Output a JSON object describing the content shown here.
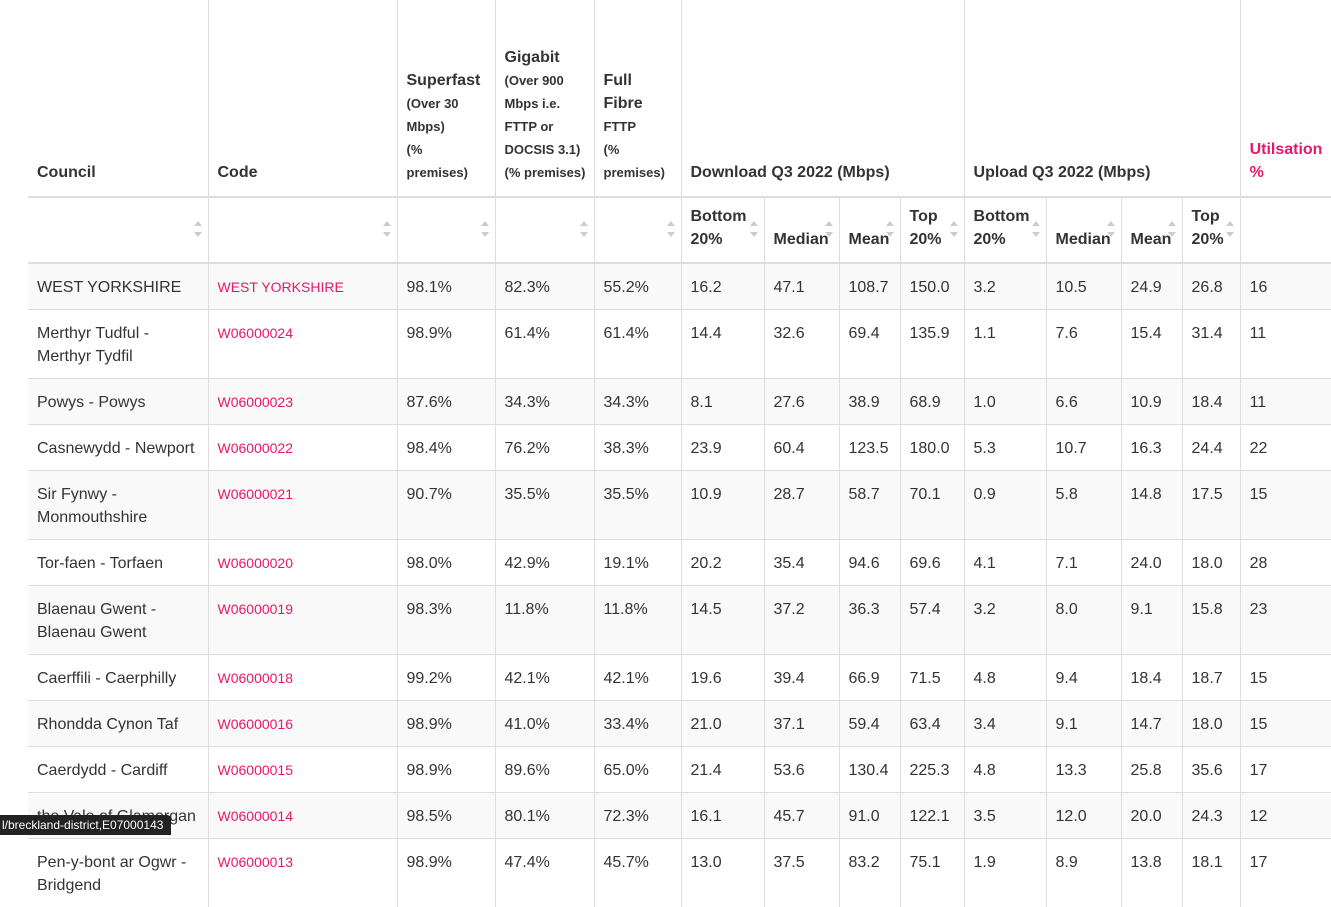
{
  "headers": {
    "council": "Council",
    "code": "Code",
    "superfast_title": "Superfast",
    "superfast_sub": "(Over 30 Mbps)",
    "superfast_unit": "(% premises)",
    "gigabit_title": "Gigabit",
    "gigabit_sub": "(Over 900 Mbps i.e. FTTP or DOCSIS 3.1)",
    "gigabit_unit": "(% premises)",
    "fullfibre_title": "Full Fibre",
    "fullfibre_sub": "FTTP",
    "fullfibre_unit": "(% premises)",
    "download": "Download Q3 2022 (Mbps)",
    "upload": "Upload Q3 2022 (Mbps)",
    "utilisation": "Utilsation %",
    "sub": {
      "bottom20": "Bottom 20%",
      "median": "Median",
      "mean": "Mean",
      "top20": "Top 20%"
    }
  },
  "rows": [
    {
      "council": "WEST YORKSHIRE",
      "code": "WEST YORKSHIRE",
      "superfast": "98.1%",
      "gigabit": "82.3%",
      "fullfibre": "55.2%",
      "dl_b20": "16.2",
      "dl_med": "47.1",
      "dl_mean": "108.7",
      "dl_t20": "150.0",
      "ul_b20": "3.2",
      "ul_med": "10.5",
      "ul_mean": "24.9",
      "ul_t20": "26.8",
      "util": "16"
    },
    {
      "council": "Merthyr Tudful - Merthyr Tydfil",
      "code": "W06000024",
      "superfast": "98.9%",
      "gigabit": "61.4%",
      "fullfibre": "61.4%",
      "dl_b20": "14.4",
      "dl_med": "32.6",
      "dl_mean": "69.4",
      "dl_t20": "135.9",
      "ul_b20": "1.1",
      "ul_med": "7.6",
      "ul_mean": "15.4",
      "ul_t20": "31.4",
      "util": "11"
    },
    {
      "council": "Powys - Powys",
      "code": "W06000023",
      "superfast": "87.6%",
      "gigabit": "34.3%",
      "fullfibre": "34.3%",
      "dl_b20": "8.1",
      "dl_med": "27.6",
      "dl_mean": "38.9",
      "dl_t20": "68.9",
      "ul_b20": "1.0",
      "ul_med": "6.6",
      "ul_mean": "10.9",
      "ul_t20": "18.4",
      "util": "11"
    },
    {
      "council": "Casnewydd - Newport",
      "code": "W06000022",
      "superfast": "98.4%",
      "gigabit": "76.2%",
      "fullfibre": "38.3%",
      "dl_b20": "23.9",
      "dl_med": "60.4",
      "dl_mean": "123.5",
      "dl_t20": "180.0",
      "ul_b20": "5.3",
      "ul_med": "10.7",
      "ul_mean": "16.3",
      "ul_t20": "24.4",
      "util": "22"
    },
    {
      "council": "Sir Fynwy - Monmouthshire",
      "code": "W06000021",
      "superfast": "90.7%",
      "gigabit": "35.5%",
      "fullfibre": "35.5%",
      "dl_b20": "10.9",
      "dl_med": "28.7",
      "dl_mean": "58.7",
      "dl_t20": "70.1",
      "ul_b20": "0.9",
      "ul_med": "5.8",
      "ul_mean": "14.8",
      "ul_t20": "17.5",
      "util": "15"
    },
    {
      "council": "Tor-faen - Torfaen",
      "code": "W06000020",
      "superfast": "98.0%",
      "gigabit": "42.9%",
      "fullfibre": "19.1%",
      "dl_b20": "20.2",
      "dl_med": "35.4",
      "dl_mean": "94.6",
      "dl_t20": "69.6",
      "ul_b20": "4.1",
      "ul_med": "7.1",
      "ul_mean": "24.0",
      "ul_t20": "18.0",
      "util": "28"
    },
    {
      "council": "Blaenau Gwent - Blaenau Gwent",
      "code": "W06000019",
      "superfast": "98.3%",
      "gigabit": "11.8%",
      "fullfibre": "11.8%",
      "dl_b20": "14.5",
      "dl_med": "37.2",
      "dl_mean": "36.3",
      "dl_t20": "57.4",
      "ul_b20": "3.2",
      "ul_med": "8.0",
      "ul_mean": "9.1",
      "ul_t20": "15.8",
      "util": "23"
    },
    {
      "council": "Caerffili - Caerphilly",
      "code": "W06000018",
      "superfast": "99.2%",
      "gigabit": "42.1%",
      "fullfibre": "42.1%",
      "dl_b20": "19.6",
      "dl_med": "39.4",
      "dl_mean": "66.9",
      "dl_t20": "71.5",
      "ul_b20": "4.8",
      "ul_med": "9.4",
      "ul_mean": "18.4",
      "ul_t20": "18.7",
      "util": "15"
    },
    {
      "council": "Rhondda Cynon Taf",
      "code": "W06000016",
      "superfast": "98.9%",
      "gigabit": "41.0%",
      "fullfibre": "33.4%",
      "dl_b20": "21.0",
      "dl_med": "37.1",
      "dl_mean": "59.4",
      "dl_t20": "63.4",
      "ul_b20": "3.4",
      "ul_med": "9.1",
      "ul_mean": "14.7",
      "ul_t20": "18.0",
      "util": "15"
    },
    {
      "council": "Caerdydd - Cardiff",
      "code": "W06000015",
      "superfast": "98.9%",
      "gigabit": "89.6%",
      "fullfibre": "65.0%",
      "dl_b20": "21.4",
      "dl_med": "53.6",
      "dl_mean": "130.4",
      "dl_t20": "225.3",
      "ul_b20": "4.8",
      "ul_med": "13.3",
      "ul_mean": "25.8",
      "ul_t20": "35.6",
      "util": "17"
    },
    {
      "council": "the Vale of Glamorgan",
      "code": "W06000014",
      "superfast": "98.5%",
      "gigabit": "80.1%",
      "fullfibre": "72.3%",
      "dl_b20": "16.1",
      "dl_med": "45.7",
      "dl_mean": "91.0",
      "dl_t20": "122.1",
      "ul_b20": "3.5",
      "ul_med": "12.0",
      "ul_mean": "20.0",
      "ul_t20": "24.3",
      "util": "12"
    },
    {
      "council": "Pen-y-bont ar Ogwr - Bridgend",
      "code": "W06000013",
      "superfast": "98.9%",
      "gigabit": "47.4%",
      "fullfibre": "45.7%",
      "dl_b20": "13.0",
      "dl_med": "37.5",
      "dl_mean": "83.2",
      "dl_t20": "75.1",
      "ul_b20": "1.9",
      "ul_med": "8.9",
      "ul_mean": "13.8",
      "ul_t20": "18.1",
      "util": "17"
    }
  ],
  "status_bar": "l/breckland-district,E07000143"
}
